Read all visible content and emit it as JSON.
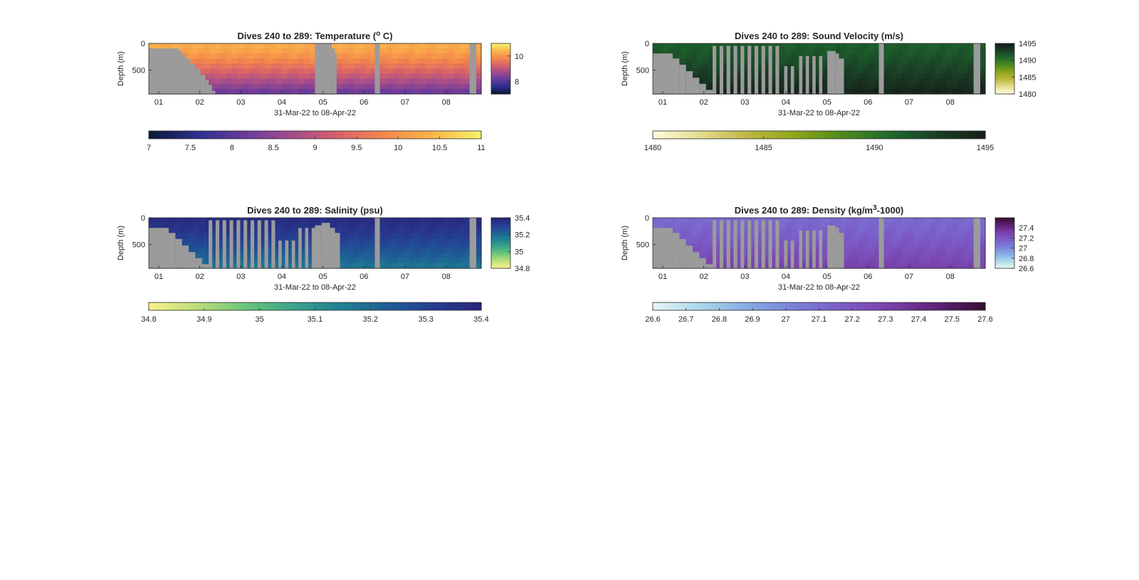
{
  "chart_data": [
    {
      "type": "heatmap",
      "title": "Dives 240 to 289: Temperature (° C)",
      "title_main": "Dives 240 to 289: Temperature (",
      "title_sup": "o",
      "title_tail": " C)",
      "xlabel": "31-Mar-22 to 08-Apr-22",
      "ylabel": "Depth (m)",
      "x_ticks": [
        "01",
        "02",
        "03",
        "04",
        "05",
        "06",
        "07",
        "08"
      ],
      "y_ticks": [
        0,
        500
      ],
      "ylim": [
        0,
        950
      ],
      "clim": [
        7,
        11
      ],
      "colorbar_ticks": [
        8,
        10
      ],
      "horizontal_colorbar_ticks": [
        7,
        7.5,
        8,
        8.5,
        9,
        9.5,
        10,
        10.5,
        11
      ],
      "colormap": [
        "#0b1a3a",
        "#2d2f8f",
        "#6a3b9c",
        "#a24c8c",
        "#d8626a",
        "#f5894a",
        "#f9b54a",
        "#f4f067"
      ],
      "surface_value": 10.3,
      "bottom_value": 8.2
    },
    {
      "type": "heatmap",
      "title": "Dives 240 to 289: Sound Velocity (m/s)",
      "title_main": "Dives 240 to 289: Sound Velocity (m/s)",
      "title_sup": "",
      "title_tail": "",
      "xlabel": "31-Mar-22 to 08-Apr-22",
      "ylabel": "Depth (m)",
      "x_ticks": [
        "01",
        "02",
        "03",
        "04",
        "05",
        "06",
        "07",
        "08"
      ],
      "y_ticks": [
        0,
        500
      ],
      "ylim": [
        0,
        950
      ],
      "clim": [
        1480,
        1495
      ],
      "colorbar_ticks": [
        1480,
        1485,
        1490,
        1495
      ],
      "horizontal_colorbar_ticks": [
        1480,
        1485,
        1490,
        1495
      ],
      "colormap": [
        "#fdfbd6",
        "#e3dc8c",
        "#bcb640",
        "#8ea61a",
        "#4f8a1f",
        "#1f6a2d",
        "#1a4027",
        "#161f18"
      ],
      "surface_value": 1491.5,
      "bottom_value": 1494.5
    },
    {
      "type": "heatmap",
      "title": "Dives 240 to 289: Salinity (psu)",
      "title_main": "Dives 240 to 289: Salinity (psu)",
      "title_sup": "",
      "title_tail": "",
      "xlabel": "31-Mar-22 to 08-Apr-22",
      "ylabel": "Depth (m)",
      "x_ticks": [
        "01",
        "02",
        "03",
        "04",
        "05",
        "06",
        "07",
        "08"
      ],
      "y_ticks": [
        0,
        500
      ],
      "ylim": [
        0,
        950
      ],
      "clim": [
        34.8,
        35.4
      ],
      "colorbar_ticks": [
        34.8,
        35,
        35.2,
        35.4
      ],
      "horizontal_colorbar_ticks": [
        34.8,
        34.9,
        35,
        35.1,
        35.2,
        35.3,
        35.4
      ],
      "colormap": [
        "#f8f18c",
        "#b9de7a",
        "#6cc57a",
        "#3aa58a",
        "#1f8391",
        "#1e5f95",
        "#253f93",
        "#2a2479"
      ],
      "surface_value": 35.37,
      "bottom_value": 35.18
    },
    {
      "type": "heatmap",
      "title": "Dives 240 to 289: Density (kg/m³-1000)",
      "title_main": "Dives 240 to 289: Density (kg/m",
      "title_sup": "3",
      "title_tail": "-1000)",
      "xlabel": "31-Mar-22 to 08-Apr-22",
      "ylabel": "Depth (m)",
      "x_ticks": [
        "01",
        "02",
        "03",
        "04",
        "05",
        "06",
        "07",
        "08"
      ],
      "y_ticks": [
        0,
        500
      ],
      "ylim": [
        0,
        950
      ],
      "clim": [
        26.6,
        27.6
      ],
      "colorbar_ticks": [
        26.6,
        26.8,
        27,
        27.2,
        27.4
      ],
      "horizontal_colorbar_ticks": [
        26.6,
        26.7,
        26.8,
        26.9,
        27,
        27.1,
        27.2,
        27.3,
        27.4,
        27.5,
        27.6
      ],
      "colormap": [
        "#e6f5f5",
        "#a9d6ea",
        "#85a9e4",
        "#7b7fd8",
        "#7b5cc7",
        "#7a40aa",
        "#5e2277",
        "#3a0f36"
      ],
      "surface_value": 27.12,
      "bottom_value": 27.3
    }
  ],
  "colors": {
    "mask": "#9b9b9b",
    "frame": "#262626"
  }
}
